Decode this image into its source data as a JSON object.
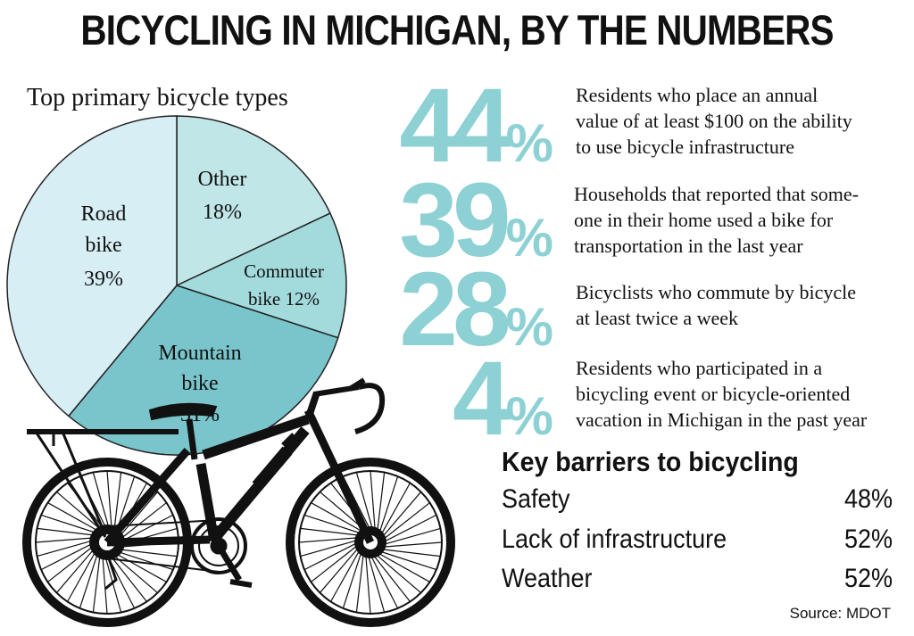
{
  "title": "BICYCLING IN MICHIGAN, BY THE NUMBERS",
  "colors": {
    "accent": "#8dd1d5",
    "road": "#d7eef5",
    "other": "#c1e6e8",
    "commuter": "#a3dbdd",
    "mountain": "#79c5cb"
  },
  "chart_data": {
    "type": "pie",
    "title": "Top primary bicycle types",
    "slices": [
      {
        "name": "Other",
        "value": 18
      },
      {
        "name": "Commuter bike",
        "value": 12
      },
      {
        "name": "Mountain bike",
        "value": 31
      },
      {
        "name": "Road bike",
        "value": 39
      }
    ],
    "labels": {
      "other": [
        "Other",
        "18%"
      ],
      "commuter": [
        "Commuter",
        "bike 12%"
      ],
      "mountain": [
        "Mountain",
        "bike",
        "31%"
      ],
      "road": [
        "Road",
        "bike",
        "39%"
      ]
    }
  },
  "stats": [
    {
      "number": "44",
      "unit": "%",
      "lines": [
        "Residents who place an annual",
        "value of at least $100 on the ability",
        "to use bicycle infrastructure"
      ]
    },
    {
      "number": "39",
      "unit": "%",
      "lines": [
        "Households that reported that some-",
        "one in their home used a bike for",
        "transportation in the last year"
      ]
    },
    {
      "number": "28",
      "unit": "%",
      "lines": [
        "Bicyclists who commute by bicycle",
        "at least twice a week"
      ]
    },
    {
      "number": "4",
      "unit": "%",
      "lines": [
        "Residents who participated in a",
        "bicycling event or bicycle-oriented",
        "vacation in Michigan in the past year"
      ]
    }
  ],
  "barriers": {
    "title": "Key barriers to bicycling",
    "rows": [
      {
        "label": "Safety",
        "value": "48%"
      },
      {
        "label": "Lack of infrastructure",
        "value": "52%"
      },
      {
        "label": "Weather",
        "value": "52%"
      }
    ]
  },
  "source": "Source: MDOT"
}
